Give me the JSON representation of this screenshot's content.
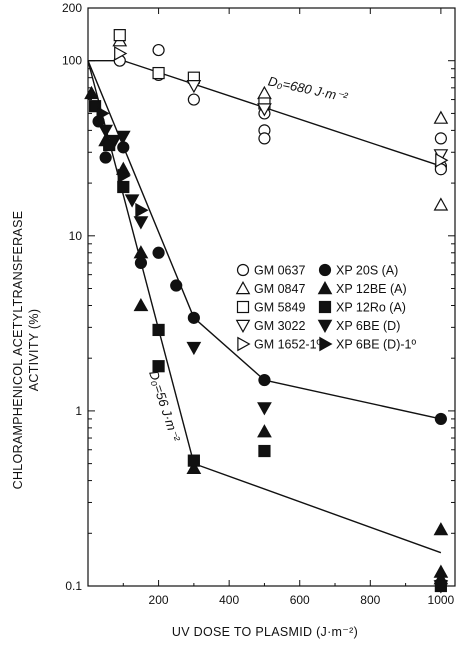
{
  "chart_data": {
    "type": "scatter",
    "xlabel": "UV DOSE TO PLASMID (J·m⁻²)",
    "ylabel_lines": [
      "CHLORAMPHENICOL ACETYLTRANSFERASE",
      "ACTIVITY (%)"
    ],
    "xlim": [
      0,
      1040
    ],
    "ylim": [
      0.1,
      200
    ],
    "yscale": "log",
    "x_ticks": [
      {
        "value": 200,
        "label": "200"
      },
      {
        "value": 400,
        "label": "400"
      },
      {
        "value": 600,
        "label": "600"
      },
      {
        "value": 800,
        "label": "800"
      },
      {
        "value": 1000,
        "label": "1000"
      }
    ],
    "y_ticks": [
      {
        "value": 0.1,
        "label": "0.1"
      },
      {
        "value": 1,
        "label": "1"
      },
      {
        "value": 10,
        "label": "10"
      },
      {
        "value": 100,
        "label": "100"
      },
      {
        "value": 200,
        "label": "200"
      }
    ],
    "annotations": [
      {
        "text": "D₀=680 J·m⁻²",
        "x": 620,
        "y": 65,
        "rotate": 12
      },
      {
        "text": "D₀=56 J·m⁻²",
        "x": 205,
        "y": 1.05,
        "rotate": 72
      }
    ],
    "legend": [
      {
        "label": "GM 0637",
        "marker": "circle",
        "filled": false
      },
      {
        "label": "GM 0847",
        "marker": "triangle-up",
        "filled": false
      },
      {
        "label": "GM 5849",
        "marker": "square",
        "filled": false
      },
      {
        "label": "GM 3022",
        "marker": "triangle-down",
        "filled": false
      },
      {
        "label": "GM 1652-1º",
        "marker": "triangle-right",
        "filled": false
      },
      {
        "label": "XP 20S (A)",
        "marker": "circle",
        "filled": true
      },
      {
        "label": "XP 12BE (A)",
        "marker": "triangle-up",
        "filled": true
      },
      {
        "label": "XP 12Ro (A)",
        "marker": "square",
        "filled": true
      },
      {
        "label": "XP 6BE (D)",
        "marker": "triangle-down",
        "filled": true
      },
      {
        "label": "XP 6BE (D)-1º",
        "marker": "triangle-right",
        "filled": true
      }
    ],
    "fit_lines": [
      {
        "points": [
          [
            0,
            100
          ],
          [
            100,
            100
          ],
          [
            1000,
            25
          ]
        ]
      },
      {
        "points": [
          [
            0,
            100
          ],
          [
            300,
            0.5
          ]
        ]
      },
      {
        "points": [
          [
            0,
            100
          ],
          [
            300,
            3.4
          ],
          [
            500,
            1.5
          ],
          [
            1000,
            0.9
          ]
        ]
      },
      {
        "points": [
          [
            300,
            0.5
          ],
          [
            1000,
            0.155
          ]
        ]
      }
    ],
    "series": [
      {
        "marker": "circle",
        "filled": false,
        "points": [
          [
            90,
            100
          ],
          [
            200,
            115
          ],
          [
            200,
            83
          ],
          [
            300,
            60
          ],
          [
            500,
            50
          ],
          [
            500,
            40
          ],
          [
            500,
            36
          ],
          [
            1000,
            36
          ],
          [
            1000,
            25
          ],
          [
            1000,
            24
          ]
        ]
      },
      {
        "marker": "triangle-up",
        "filled": false,
        "points": [
          [
            90,
            130
          ],
          [
            500,
            65
          ],
          [
            1000,
            47
          ],
          [
            1000,
            15
          ]
        ]
      },
      {
        "marker": "square",
        "filled": false,
        "points": [
          [
            90,
            140
          ],
          [
            200,
            85
          ],
          [
            300,
            80
          ],
          [
            500,
            57
          ]
        ]
      },
      {
        "marker": "triangle-down",
        "filled": false,
        "points": [
          [
            300,
            72
          ],
          [
            500,
            53
          ],
          [
            1000,
            29
          ]
        ]
      },
      {
        "marker": "triangle-right",
        "filled": false,
        "points": [
          [
            90,
            110
          ],
          [
            1000,
            27
          ]
        ]
      },
      {
        "marker": "circle",
        "filled": true,
        "points": [
          [
            30,
            45
          ],
          [
            50,
            28
          ],
          [
            100,
            32
          ],
          [
            150,
            7
          ],
          [
            200,
            8
          ],
          [
            250,
            5.2
          ],
          [
            300,
            3.4
          ],
          [
            500,
            1.5
          ],
          [
            1000,
            0.9
          ]
        ]
      },
      {
        "marker": "triangle-up",
        "filled": true,
        "points": [
          [
            10,
            65
          ],
          [
            50,
            35
          ],
          [
            100,
            24
          ],
          [
            150,
            8
          ],
          [
            150,
            4
          ],
          [
            300,
            0.47
          ],
          [
            500,
            0.76
          ],
          [
            1000,
            0.21
          ],
          [
            1000,
            0.11
          ],
          [
            1000,
            0.12
          ]
        ]
      },
      {
        "marker": "square",
        "filled": true,
        "points": [
          [
            20,
            55
          ],
          [
            60,
            33
          ],
          [
            100,
            19
          ],
          [
            200,
            2.9
          ],
          [
            200,
            1.8
          ],
          [
            300,
            0.52
          ],
          [
            500,
            0.59
          ],
          [
            1000,
            0.1
          ]
        ]
      },
      {
        "marker": "triangle-down",
        "filled": true,
        "points": [
          [
            50,
            40
          ],
          [
            75,
            35
          ],
          [
            100,
            37
          ],
          [
            125,
            16
          ],
          [
            150,
            12
          ],
          [
            300,
            2.3
          ],
          [
            500,
            1.04
          ],
          [
            1000,
            0.1
          ]
        ]
      },
      {
        "marker": "triangle-right",
        "filled": true,
        "points": [
          [
            40,
            50
          ],
          [
            100,
            22
          ],
          [
            150,
            14
          ]
        ]
      }
    ]
  }
}
